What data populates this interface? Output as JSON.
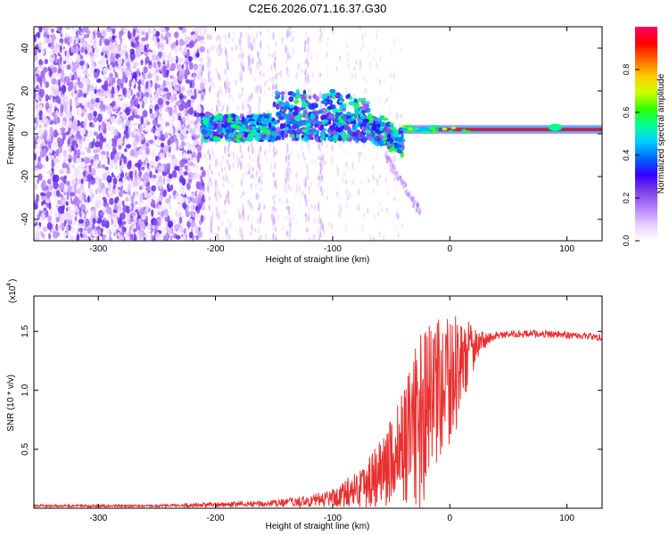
{
  "title": "C2E6.2026.071.16.37.G30",
  "chart_data": [
    {
      "type": "heatmap",
      "title": "C2E6.2026.071.16.37.G30",
      "xlabel": "Height of straight line (km)",
      "ylabel": "Frequency (Hz)",
      "xlim": [
        -355,
        130
      ],
      "ylim": [
        -50,
        50
      ],
      "x_ticks": [
        -300,
        -200,
        -100,
        0,
        100
      ],
      "y_ticks": [
        -40,
        -20,
        0,
        20,
        40
      ],
      "colorbar": {
        "label": "Normalized spectral amplitude",
        "range": [
          0,
          1
        ],
        "ticks": [
          "0.0",
          "0.2",
          "0.4",
          "0.6",
          "0.8"
        ],
        "colors": [
          "#ffffff",
          "#e6ccff",
          "#b380ff",
          "#7f3fe6",
          "#3300ff",
          "#0066ff",
          "#00ccff",
          "#00ff99",
          "#33ff00",
          "#ccff00",
          "#ffcc00",
          "#ff6600",
          "#ff0000",
          "#ff0066"
        ]
      },
      "features": [
        {
          "name": "noise band",
          "x_range": [
            -355,
            -210
          ],
          "freq_range": [
            -50,
            50
          ],
          "amplitude": 0.15
        },
        {
          "name": "strong returns",
          "x_range": [
            -212,
            -40
          ],
          "freq_range": [
            -10,
            17
          ],
          "amplitude": 0.35
        },
        {
          "name": "carrier line",
          "x_range": [
            -40,
            130
          ],
          "freq": 2,
          "amplitude": 0.95
        }
      ]
    },
    {
      "type": "line",
      "xlabel": "Height of straight line (km)",
      "ylabel": "SNR (10 * v/v)",
      "y_scale_label": "(x10",
      "y_scale_exp": "4",
      "xlim": [
        -355,
        130
      ],
      "ylim": [
        0,
        1.8
      ],
      "x_ticks": [
        -300,
        -200,
        -100,
        0,
        100
      ],
      "y_ticks": [
        0.5,
        1.0,
        1.5
      ],
      "y_tick_labels": [
        "0.5",
        "1.0",
        "1.5"
      ],
      "series": [
        {
          "name": "SNR",
          "color": "#e83030",
          "envelope_x": [
            -355,
            -300,
            -250,
            -200,
            -150,
            -120,
            -100,
            -80,
            -60,
            -45,
            -35,
            -25,
            -15,
            -5,
            5,
            15,
            25,
            35,
            45,
            60,
            80,
            100,
            115,
            130
          ],
          "envelope_y": [
            0.02,
            0.02,
            0.02,
            0.03,
            0.04,
            0.06,
            0.09,
            0.16,
            0.3,
            0.45,
            0.6,
            0.75,
            0.9,
            1.0,
            1.15,
            1.3,
            1.4,
            1.45,
            1.47,
            1.48,
            1.48,
            1.47,
            1.46,
            1.45
          ],
          "spread_y": [
            0.01,
            0.01,
            0.01,
            0.02,
            0.03,
            0.05,
            0.08,
            0.15,
            0.3,
            0.45,
            0.55,
            0.8,
            0.7,
            0.6,
            0.5,
            0.3,
            0.1,
            0.04,
            0.03,
            0.03,
            0.03,
            0.03,
            0.03,
            0.03
          ]
        }
      ]
    }
  ]
}
